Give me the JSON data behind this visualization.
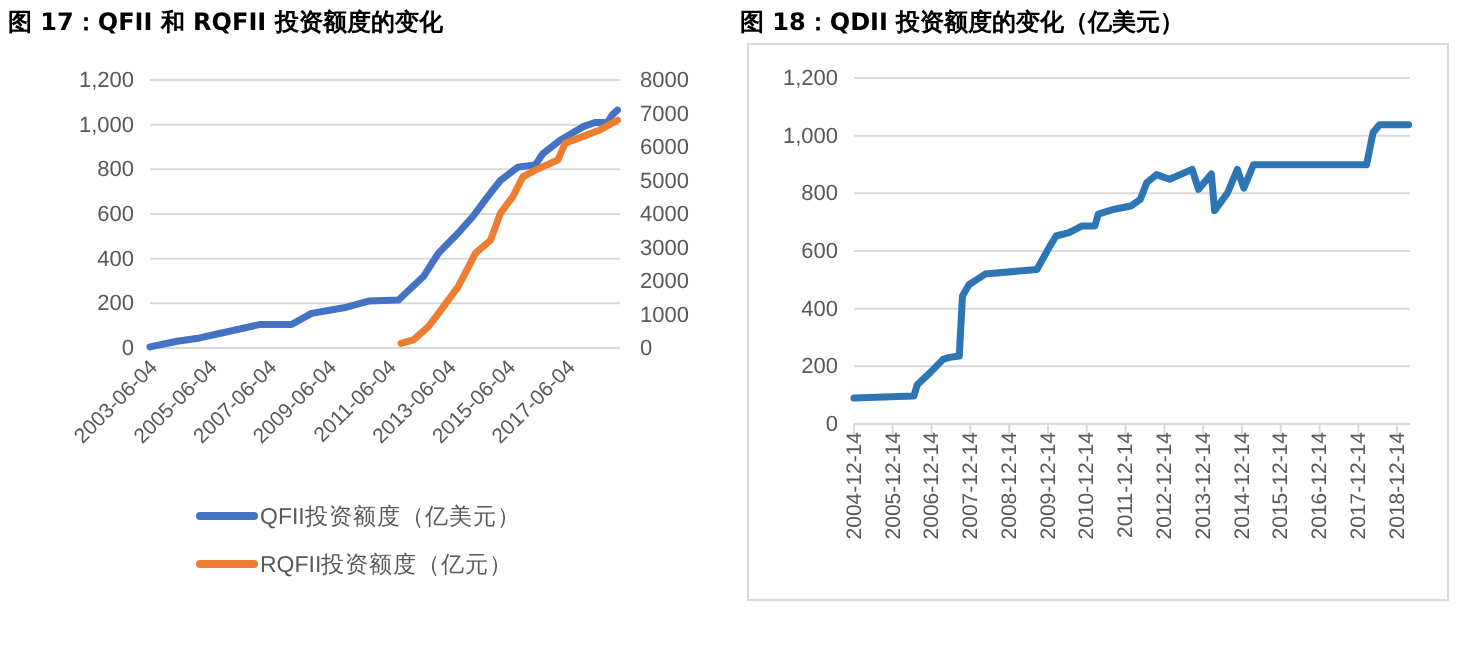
{
  "chart_data": [
    {
      "type": "line",
      "title": "图 17：QFII 和 RQFII 投资额度的变化",
      "xlim": [
        "2003-06-04",
        "2019-03-04"
      ],
      "xticks": [
        {
          "value": "2003-06-04",
          "label": "2003-06-04"
        },
        {
          "value": "2005-06-04",
          "label": "2005-06-04"
        },
        {
          "value": "2007-06-04",
          "label": "2007-06-04"
        },
        {
          "value": "2009-06-04",
          "label": "2009-06-04"
        },
        {
          "value": "2011-06-04",
          "label": "2011-06-04"
        },
        {
          "value": "2013-06-04",
          "label": "2013-06-04"
        },
        {
          "value": "2015-06-04",
          "label": "2015-06-04"
        },
        {
          "value": "2017-06-04",
          "label": "2017-06-04"
        }
      ],
      "ylim": [
        0,
        1200
      ],
      "yticks": [
        {
          "value": 0,
          "label": "0"
        },
        {
          "value": 200,
          "label": "200"
        },
        {
          "value": 400,
          "label": "400"
        },
        {
          "value": 600,
          "label": "600"
        },
        {
          "value": 800,
          "label": "800"
        },
        {
          "value": 1000,
          "label": "1,000"
        },
        {
          "value": 1200,
          "label": "1,200"
        }
      ],
      "y2lim": [
        0,
        8000
      ],
      "y2ticks": [
        0,
        1000,
        2000,
        3000,
        4000,
        5000,
        6000,
        7000,
        8000
      ],
      "grid": "y",
      "legend": "bottom",
      "series": [
        {
          "name": "QFII投资额度（亿美元）",
          "color": "#4472c4",
          "x": [
            "2003-06-04",
            "2004-05",
            "2005-02",
            "2005-10",
            "2007-02",
            "2008-03",
            "2008-11",
            "2009-12",
            "2010-10",
            "2011-10",
            "2012-08",
            "2013-02",
            "2013-10",
            "2014-04",
            "2014-10",
            "2015-03",
            "2015-10",
            "2016-05",
            "2016-08",
            "2017-03",
            "2017-12",
            "2018-05",
            "2018-10",
            "2018-12",
            "2019-02"
          ],
          "values": [
            5,
            30,
            45,
            65,
            105,
            105,
            155,
            180,
            210,
            215,
            320,
            425,
            515,
            590,
            680,
            750,
            810,
            820,
            870,
            930,
            990,
            1010,
            1010,
            1045,
            1065
          ]
        },
        {
          "name": "RQFII投资额度（亿元）",
          "color": "#ed7d31",
          "axis": "y2",
          "x": [
            "2011-11",
            "2012-04",
            "2012-10",
            "2013-02",
            "2013-10",
            "2014-05",
            "2014-11",
            "2015-03",
            "2015-08",
            "2015-12",
            "2016-05",
            "2017-02",
            "2017-05",
            "2017-12",
            "2018-07",
            "2019-02"
          ],
          "values": [
            140,
            240,
            640,
            1030,
            1830,
            2830,
            3220,
            4020,
            4520,
            5110,
            5310,
            5610,
            6110,
            6310,
            6510,
            6800
          ]
        }
      ]
    },
    {
      "type": "line",
      "title": "图 18：QDII 投资额度的变化（亿美元）",
      "xlim": [
        "2004-12-14",
        "2019-04-14"
      ],
      "xticks": [
        {
          "value": "2004-12-14",
          "label": "2004-12-14"
        },
        {
          "value": "2005-12-14",
          "label": "2005-12-14"
        },
        {
          "value": "2006-12-14",
          "label": "2006-12-14"
        },
        {
          "value": "2007-12-14",
          "label": "2007-12-14"
        },
        {
          "value": "2008-12-14",
          "label": "2008-12-14"
        },
        {
          "value": "2009-12-14",
          "label": "2009-12-14"
        },
        {
          "value": "2010-12-14",
          "label": "2010-12-14"
        },
        {
          "value": "2011-12-14",
          "label": "2011-12-14"
        },
        {
          "value": "2012-12-14",
          "label": "2012-12-14"
        },
        {
          "value": "2013-12-14",
          "label": "2013-12-14"
        },
        {
          "value": "2014-12-14",
          "label": "2014-12-14"
        },
        {
          "value": "2015-12-14",
          "label": "2015-12-14"
        },
        {
          "value": "2016-12-14",
          "label": "2016-12-14"
        },
        {
          "value": "2017-12-14",
          "label": "2017-12-14"
        },
        {
          "value": "2018-12-14",
          "label": "2018-12-14"
        }
      ],
      "ylim": [
        0,
        1200
      ],
      "yticks": [
        {
          "value": 0,
          "label": "0"
        },
        {
          "value": 200,
          "label": "200"
        },
        {
          "value": 400,
          "label": "400"
        },
        {
          "value": 600,
          "label": "600"
        },
        {
          "value": 800,
          "label": "800"
        },
        {
          "value": 1000,
          "label": "1,000"
        },
        {
          "value": 1200,
          "label": "1,200"
        }
      ],
      "grid": "y",
      "series": [
        {
          "color": "#2e75b6",
          "x": [
            "2004-12-14",
            "2006-07",
            "2006-08",
            "2006-12",
            "2007-04",
            "2007-06",
            "2007-09",
            "2007-10",
            "2007-12",
            "2008-05",
            "2009-09",
            "2010-01",
            "2010-03",
            "2010-07",
            "2010-11",
            "2011-03",
            "2011-04",
            "2011-09",
            "2012-02",
            "2012-05",
            "2012-07",
            "2012-10",
            "2013-02",
            "2013-09",
            "2013-11",
            "2014-03",
            "2014-04",
            "2014-08",
            "2014-11",
            "2015-01",
            "2015-04",
            "2018-03",
            "2018-05",
            "2018-07",
            "2019-04"
          ],
          "values": [
            90,
            97,
            136,
            178,
            224,
            231,
            236,
            444,
            483,
            520,
            536,
            617,
            652,
            664,
            687,
            687,
            728,
            745,
            756,
            779,
            837,
            865,
            849,
            883,
            814,
            867,
            740,
            802,
            883,
            818,
            899,
            899,
            1010,
            1038,
            1038
          ]
        }
      ]
    }
  ]
}
